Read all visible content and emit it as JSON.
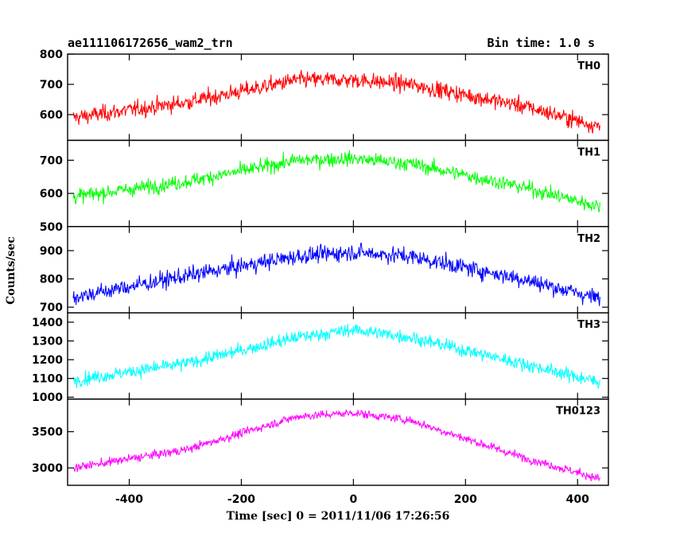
{
  "header": {
    "left": "ae111106172656_wam2_trn",
    "right": "Bin time: 1.0 s"
  },
  "chart_data": {
    "type": "line",
    "xlabel": "Time [sec] 0 = 2011/11/06 17:26:56",
    "ylabel": "Counts/sec",
    "xlim": [
      -510,
      455
    ],
    "xticks": [
      -400,
      -200,
      0,
      200,
      400
    ],
    "x_range": [
      -500,
      440
    ],
    "bin_time_s": 1.0,
    "grid": false,
    "panels": [
      {
        "name": "TH0",
        "color": "#ff0000",
        "ylim": [
          515,
          800
        ],
        "yticks": [
          600,
          700,
          800
        ],
        "trend": {
          "x": [
            -500,
            -300,
            -100,
            0,
            100,
            300,
            440
          ],
          "y": [
            590,
            640,
            715,
            715,
            700,
            630,
            560
          ]
        },
        "noise": 35
      },
      {
        "name": "TH1",
        "color": "#00ff00",
        "ylim": [
          500,
          760
        ],
        "yticks": [
          500,
          600,
          700
        ],
        "trend": {
          "x": [
            -500,
            -300,
            -100,
            0,
            100,
            300,
            440
          ],
          "y": [
            590,
            635,
            700,
            705,
            690,
            620,
            560
          ]
        },
        "noise": 28
      },
      {
        "name": "TH2",
        "color": "#0000ff",
        "ylim": [
          680,
          985
        ],
        "yticks": [
          700,
          800,
          900
        ],
        "trend": {
          "x": [
            -500,
            -300,
            -100,
            0,
            100,
            300,
            440
          ],
          "y": [
            735,
            810,
            880,
            895,
            880,
            800,
            730
          ]
        },
        "noise": 38
      },
      {
        "name": "TH3",
        "color": "#00ffff",
        "ylim": [
          990,
          1450
        ],
        "yticks": [
          1000,
          1100,
          1200,
          1300,
          1400
        ],
        "trend": {
          "x": [
            -500,
            -300,
            -100,
            0,
            100,
            300,
            440
          ],
          "y": [
            1090,
            1180,
            1320,
            1360,
            1320,
            1180,
            1080
          ]
        },
        "noise": 45
      },
      {
        "name": "TH0123",
        "color": "#ff00ff",
        "ylim": [
          2760,
          3950
        ],
        "yticks": [
          3000,
          3500
        ],
        "trend": {
          "x": [
            -500,
            -300,
            -100,
            0,
            100,
            300,
            440
          ],
          "y": [
            3000,
            3250,
            3710,
            3760,
            3660,
            3150,
            2850
          ]
        },
        "noise": 75
      }
    ]
  }
}
